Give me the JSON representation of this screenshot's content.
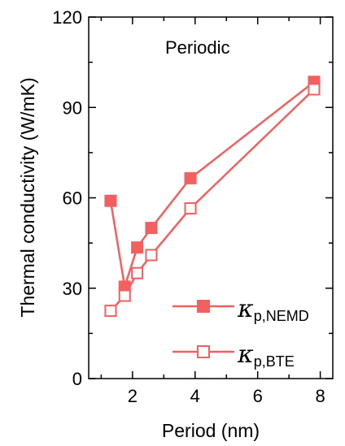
{
  "chart_data": {
    "type": "line",
    "annotation": "Periodic",
    "xlabel": "Period (nm)",
    "ylabel": "Thermal conductivity (W/mK)",
    "xlim": [
      0.6,
      8.4
    ],
    "ylim": [
      0,
      120
    ],
    "xticks": [
      2,
      4,
      6,
      8
    ],
    "xticks_minor": [
      1,
      3,
      5,
      7
    ],
    "yticks": [
      0,
      30,
      60,
      90,
      120
    ],
    "yticks_minor": [
      15,
      45,
      75,
      105
    ],
    "grid": false,
    "legend_position": "bottom-right",
    "color": "#f26060",
    "series": [
      {
        "name": "κ",
        "name_subscript": "p,NEMD",
        "marker": "filled-square",
        "x": [
          1.3,
          1.75,
          2.15,
          2.6,
          3.85,
          7.8
        ],
        "y": [
          59,
          30.5,
          43.5,
          50,
          66.5,
          98.5
        ]
      },
      {
        "name": "κ",
        "name_subscript": "p,BTE",
        "marker": "open-square",
        "x": [
          1.3,
          1.75,
          2.15,
          2.6,
          3.85,
          7.8
        ],
        "y": [
          22.5,
          27.5,
          35,
          41,
          56.5,
          96
        ]
      }
    ]
  }
}
